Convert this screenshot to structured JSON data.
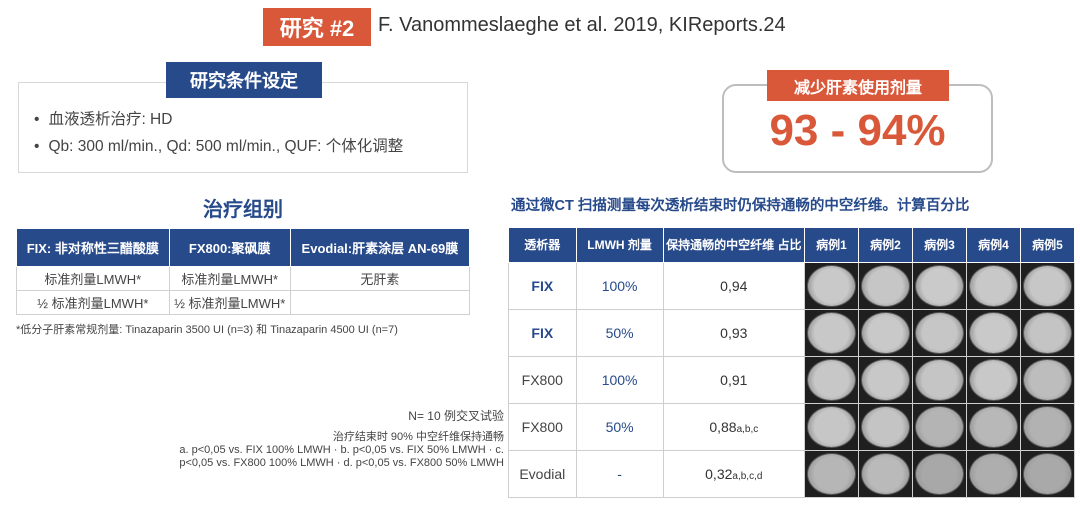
{
  "header": {
    "tag": "研究 #2",
    "citation": "F. Vanommeslaeghe et al. 2019, KIReports.24"
  },
  "conditions": {
    "title": "研究条件设定",
    "items": [
      "血液透析治疗: HD",
      "Qb: 300 ml/min., Qd: 500 ml/min., QUF: 个体化调整"
    ]
  },
  "reduction": {
    "label": "减少肝素使用剂量",
    "value": "93 - 94%"
  },
  "groups": {
    "title": "治疗组别",
    "headers": [
      "FIX: 非对称性三醋酸膜",
      "FX800:聚砜膜",
      "Evodial:肝素涂层 AN-69膜"
    ],
    "rows": [
      [
        "标准剂量LMWH*",
        "标准剂量LMWH*",
        "无肝素"
      ],
      [
        "½ 标准剂量LMWH*",
        "½ 标准剂量LMWH*",
        ""
      ]
    ],
    "footnote": "*低分子肝素常规剂量: Tinazaparin 3500 UI (n=3) 和 Tinazaparin 4500 UI (n=7)"
  },
  "notes": {
    "n": "N= 10 例交叉试验",
    "line1": "治疗结束时 90% 中空纤维保持通畅",
    "line2": "a. p<0,05 vs. FIX 100% LMWH · b. p<0,05 vs. FIX 50% LMWH · c.",
    "line3": "p<0,05 vs. FX800 100% LMWH · d. p<0,05 vs. FX800 50% LMWH"
  },
  "ct": {
    "title": "通过微CT 扫描测量每次透析结束时仍保持通畅的中空纤维。计算百分比",
    "headers": {
      "dialyzer": "透析器",
      "lmwh": "LMWH 剂量",
      "ratio": "保持通畅的中空纤维 占比",
      "cases": [
        "病例1",
        "病例2",
        "病例3",
        "病例4",
        "病例5"
      ]
    },
    "rows": [
      {
        "dialyzer": "FIX",
        "dose": "100%",
        "ratio": "0,94",
        "sup": ""
      },
      {
        "dialyzer": "FIX",
        "dose": "50%",
        "ratio": "0,93",
        "sup": ""
      },
      {
        "dialyzer": "FX800",
        "dose": "100%",
        "ratio": "0,91",
        "sup": ""
      },
      {
        "dialyzer": "FX800",
        "dose": "50%",
        "ratio": "0,88",
        "sup": "a,b,c"
      },
      {
        "dialyzer": "Evodial",
        "dose": "-",
        "ratio": "0,32",
        "sup": "a,b,c,d"
      }
    ]
  },
  "colors": {
    "navy": "#274a8b",
    "accent": "#d9583a"
  }
}
